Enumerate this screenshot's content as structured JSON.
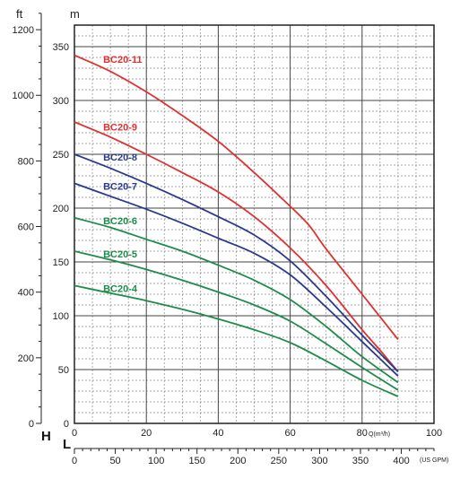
{
  "chart_data": {
    "type": "line",
    "title": "",
    "y_units": {
      "left_outer": "ft",
      "left_inner": "m"
    },
    "axis_letters": {
      "head": "H",
      "flow": "L"
    },
    "x_main": {
      "label": "Q(m³/h)",
      "range": [
        0,
        100
      ],
      "ticks": [
        0,
        20,
        40,
        60,
        80,
        100
      ]
    },
    "x_secondary": {
      "label": "(US GPM)",
      "range": [
        0,
        440
      ],
      "ticks": [
        0,
        50,
        100,
        150,
        200,
        250,
        300,
        350,
        400
      ]
    },
    "y_main": {
      "label": "m",
      "range": [
        0,
        370
      ],
      "ticks": [
        0,
        50,
        100,
        150,
        200,
        250,
        300,
        350
      ]
    },
    "y_secondary": {
      "label": "ft",
      "ticks": [
        0,
        200,
        400,
        600,
        800,
        1000,
        1200
      ]
    },
    "grid": true,
    "series": [
      {
        "name": "BC20-11",
        "color": "#e03030",
        "x": [
          0,
          10,
          20,
          30,
          40,
          50,
          58,
          65,
          70,
          80,
          90
        ],
        "y": [
          342,
          327,
          308,
          286,
          262,
          233,
          208,
          185,
          162,
          120,
          78
        ]
      },
      {
        "name": "BC20-9",
        "color": "#e03030",
        "x": [
          0,
          10,
          20,
          30,
          40,
          50,
          60,
          70,
          80,
          85,
          90
        ],
        "y": [
          280,
          266,
          250,
          233,
          215,
          192,
          163,
          128,
          87,
          68,
          48
        ]
      },
      {
        "name": "BC20-8",
        "color": "#2a3a8c",
        "x": [
          0,
          10,
          20,
          30,
          40,
          50,
          60,
          70,
          80,
          85,
          90
        ],
        "y": [
          250,
          237,
          223,
          208,
          192,
          175,
          151,
          118,
          82,
          65,
          48
        ]
      },
      {
        "name": "BC20-7",
        "color": "#2a3a8c",
        "x": [
          0,
          10,
          20,
          30,
          40,
          50,
          60,
          70,
          80,
          85,
          90
        ],
        "y": [
          223,
          211,
          199,
          186,
          172,
          158,
          138,
          108,
          76,
          60,
          44
        ]
      },
      {
        "name": "BC20-6",
        "color": "#1e8c4a",
        "x": [
          0,
          10,
          20,
          30,
          40,
          50,
          60,
          70,
          80,
          90
        ],
        "y": [
          191,
          182,
          171,
          160,
          147,
          133,
          115,
          90,
          62,
          38
        ]
      },
      {
        "name": "BC20-5",
        "color": "#1e8c4a",
        "x": [
          0,
          10,
          20,
          30,
          40,
          50,
          60,
          70,
          80,
          90
        ],
        "y": [
          160,
          152,
          143,
          133,
          122,
          110,
          95,
          74,
          52,
          31
        ]
      },
      {
        "name": "BC20-4",
        "color": "#1e8c4a",
        "x": [
          0,
          10,
          20,
          30,
          40,
          50,
          60,
          70,
          80,
          90
        ],
        "y": [
          128,
          121,
          114,
          106,
          97,
          87,
          75,
          58,
          40,
          25
        ]
      }
    ]
  }
}
